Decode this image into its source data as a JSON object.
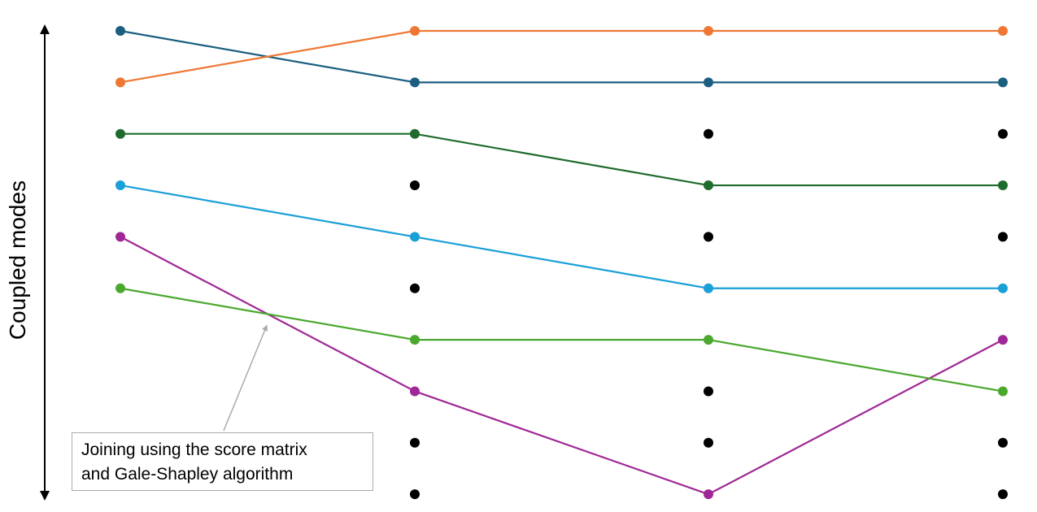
{
  "axis_label": "Coupled modes",
  "annotation": {
    "line1": "Joining using the score matrix",
    "line2": "and Gale-Shapley algorithm"
  },
  "diagram": {
    "columns": 4,
    "rows": 10,
    "paths": [
      {
        "color": "#1b5e80",
        "rows": [
          0,
          1,
          1,
          1
        ]
      },
      {
        "color": "#ee7733",
        "rows": [
          1,
          0,
          0,
          0
        ]
      },
      {
        "color": "#1e6b2b",
        "rows": [
          2,
          2,
          3,
          3
        ]
      },
      {
        "color": "#1a9fd8",
        "rows": [
          3,
          4,
          5,
          5
        ]
      },
      {
        "color": "#a02896",
        "rows": [
          4,
          7,
          9,
          6
        ]
      },
      {
        "color": "#4ba82e",
        "rows": [
          5,
          6,
          6,
          7
        ]
      }
    ],
    "unmatched": [
      {
        "column": 1,
        "rows": [
          3,
          5,
          8,
          9
        ]
      },
      {
        "column": 2,
        "rows": [
          2,
          4,
          7,
          8
        ]
      },
      {
        "column": 3,
        "rows": [
          2,
          4,
          8,
          9
        ]
      }
    ],
    "unmatched_color": "#000000",
    "annotation_arrow_color": "#aaaaaa"
  }
}
